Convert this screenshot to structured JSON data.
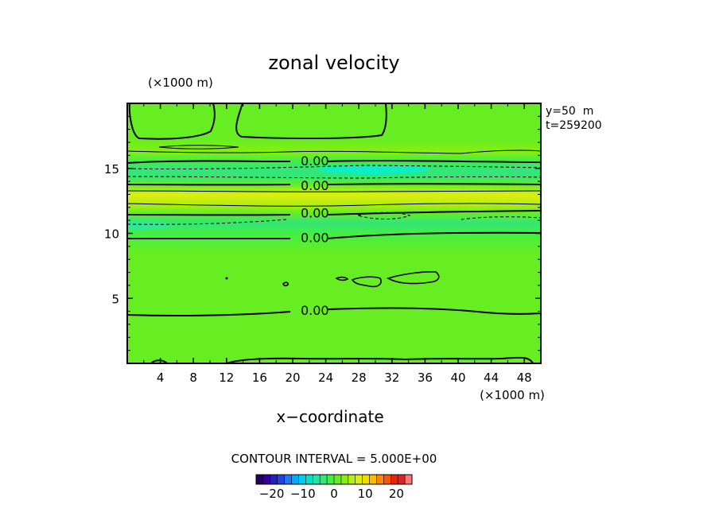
{
  "chart_data": {
    "type": "heatmap",
    "title": "zonal velocity",
    "xlabel": "x−coordinate",
    "x_unit": "(×1000 m)",
    "y_unit": "(×1000 m)",
    "xlim": [
      0,
      50
    ],
    "ylim": [
      0,
      20
    ],
    "x_ticks": [
      "4",
      "8",
      "12",
      "16",
      "20",
      "24",
      "28",
      "32",
      "36",
      "40",
      "44",
      "48"
    ],
    "y_ticks": [
      "5",
      "10",
      "15"
    ],
    "info": [
      "y=50  m",
      "t=259200"
    ],
    "contour_interval": "CONTOUR INTERVAL = 5.000E+00",
    "contour_labels": [
      {
        "text": "0.00",
        "x": 22,
        "y": 15.6
      },
      {
        "text": "0.00",
        "x": 22,
        "y": 13.7
      },
      {
        "text": "0.00",
        "x": 22,
        "y": 11.6
      },
      {
        "text": "0.00",
        "x": 22,
        "y": 9.7
      },
      {
        "text": "0.00",
        "x": 22,
        "y": 4.1
      }
    ],
    "bands": [
      {
        "y": 0.0,
        "value": 1.5
      },
      {
        "y": 3.0,
        "value": 1.2
      },
      {
        "y": 6.0,
        "value": 1.8
      },
      {
        "y": 8.5,
        "value": 1.4
      },
      {
        "y": 10.0,
        "value": -1.0
      },
      {
        "y": 10.8,
        "value": -3.0
      },
      {
        "y": 11.6,
        "value": 1.0
      },
      {
        "y": 12.3,
        "value": 6.5
      },
      {
        "y": 13.0,
        "value": 7.0
      },
      {
        "y": 13.7,
        "value": 2.0
      },
      {
        "y": 14.4,
        "value": -4.0
      },
      {
        "y": 15.0,
        "value": -4.5
      },
      {
        "y": 15.6,
        "value": -0.5
      },
      {
        "y": 16.3,
        "value": 3.5
      },
      {
        "y": 17.2,
        "value": 1.5
      },
      {
        "y": 20.0,
        "value": 1.8
      }
    ],
    "colorbar": {
      "ticks": [
        "−20",
        "−10",
        "0",
        "10",
        "20"
      ],
      "tick_values": [
        -20,
        -10,
        0,
        10,
        20
      ],
      "range": [
        -25,
        25
      ],
      "colors": [
        "#220066",
        "#330099",
        "#2222bb",
        "#2244dd",
        "#2277ee",
        "#00aaff",
        "#00ccee",
        "#00e0cc",
        "#22e6a0",
        "#33e677",
        "#44ee44",
        "#66ee22",
        "#88ee11",
        "#bbee11",
        "#ddee11",
        "#eedd00",
        "#ffbb00",
        "#ff8800",
        "#ff5500",
        "#ee2200",
        "#dd2222",
        "#ff7777"
      ]
    }
  }
}
